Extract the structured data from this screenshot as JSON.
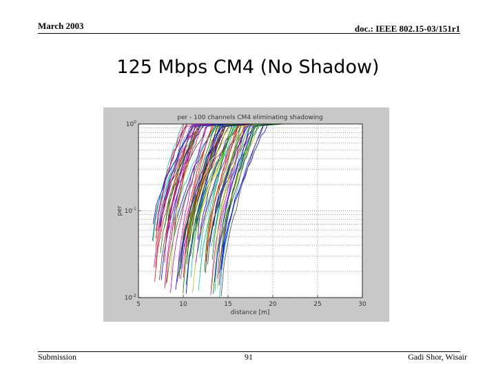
{
  "header": {
    "date": "March 2003",
    "doc_id": "doc.: IEEE 802.15-03/151r1"
  },
  "slide": {
    "title": "125 Mbps CM4 (No Shadow)"
  },
  "footer": {
    "left": "Submission",
    "page": "91",
    "author": "Gadi Shor, Wisair"
  },
  "chart_data": {
    "type": "line",
    "title": "per - 100 channels CM4 eliminating shadowing",
    "xlabel": "distance [m]",
    "ylabel": "per",
    "xlim": [
      5,
      30
    ],
    "ylim": [
      0.01,
      1
    ],
    "yscale": "log",
    "grid": true,
    "x_ticks": [
      5,
      10,
      15,
      20,
      25,
      30
    ],
    "y_ticks": [
      {
        "value": 1,
        "base": "10",
        "exp": "0"
      },
      {
        "value": 0.1,
        "base": "10",
        "exp": "-1"
      },
      {
        "value": 0.01,
        "base": "10",
        "exp": "-2"
      }
    ],
    "series_count": 100,
    "series_colors": [
      "#0000ff",
      "#008000",
      "#ff0000",
      "#00bfbf",
      "#bf00bf",
      "#bfbf00",
      "#404040"
    ],
    "curve_model": "per rises from ~0.01 to 1 over ~4 m; transition distance varies per channel",
    "transition_distance_range_m": [
      6.5,
      14.5
    ],
    "per_at_max_distance": 1
  }
}
